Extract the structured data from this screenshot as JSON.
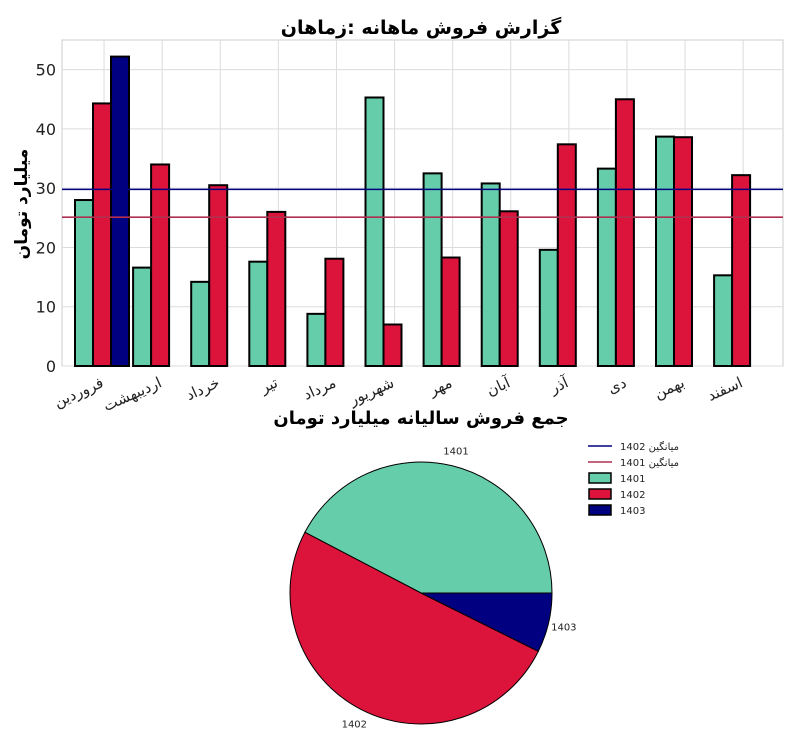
{
  "colors": {
    "s1401": "#66cdaa",
    "s1402": "#dc143c",
    "s1403": "#000080",
    "avg1402": "#000080",
    "avg1401": "#b03050",
    "grid": "#dcdcdc",
    "bar_edge": "#000000"
  },
  "chart_data": [
    {
      "type": "bar",
      "title": "گزارش فروش ماهانه :زماهان",
      "ylabel": "میلیارد تومان",
      "xlabel": "",
      "ylim": [
        0,
        55
      ],
      "yticks": [
        0,
        10,
        20,
        30,
        40,
        50
      ],
      "grid": true,
      "categories": [
        "فروردین",
        "اردیبهشت",
        "خرداد",
        "تیر",
        "مرداد",
        "شهریور",
        "مهر",
        "آبان",
        "آذر",
        "دی",
        "بهمن",
        "اسفند"
      ],
      "series": [
        {
          "name": "1401",
          "values": [
            28,
            16.6,
            14.2,
            17.6,
            8.8,
            45.3,
            32.5,
            30.8,
            19.6,
            33.3,
            38.7,
            15.3
          ]
        },
        {
          "name": "1402",
          "values": [
            44.3,
            34,
            30.5,
            26,
            18.1,
            7,
            18.3,
            26.1,
            37.4,
            45,
            38.6,
            32.2
          ]
        },
        {
          "name": "1403",
          "values": [
            52.2,
            0,
            0,
            0,
            0,
            0,
            0,
            0,
            0,
            0,
            0,
            0
          ]
        }
      ],
      "reference_lines": [
        {
          "name": "میانگین 1402",
          "value": 29.8
        },
        {
          "name": "میانگین 1401",
          "value": 25.1
        }
      ]
    },
    {
      "type": "pie",
      "title": "جمع فروش سالیانه میلیارد تومان",
      "slices": [
        {
          "label": "1401",
          "value": 300.7
        },
        {
          "label": "1402",
          "value": 357.5
        },
        {
          "label": "1403",
          "value": 52.2
        }
      ]
    }
  ],
  "legend": {
    "placement": "right of pie chart",
    "items": [
      {
        "label": "میانگین 1402",
        "kind": "line",
        "color_key": "avg1402"
      },
      {
        "label": "میانگین 1401",
        "kind": "line",
        "color_key": "avg1401"
      },
      {
        "label": "1401",
        "kind": "patch",
        "color_key": "s1401"
      },
      {
        "label": "1402",
        "kind": "patch",
        "color_key": "s1402"
      },
      {
        "label": "1403",
        "kind": "patch",
        "color_key": "s1403"
      }
    ]
  }
}
